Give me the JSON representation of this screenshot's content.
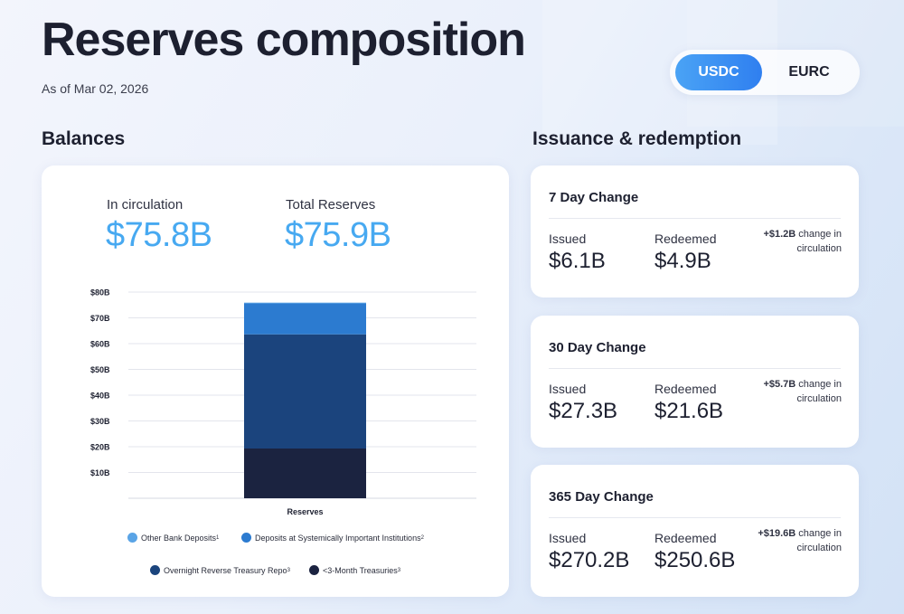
{
  "header": {
    "title": "Reserves composition",
    "as_of": "As of Mar 02, 2026"
  },
  "toggle": {
    "options": [
      "USDC",
      "EURC"
    ],
    "selected": "USDC",
    "active_color": "#3b8ef3"
  },
  "balances": {
    "section_title": "Balances",
    "in_circulation_label": "In circulation",
    "in_circulation_value": "$75.8B",
    "total_reserves_label": "Total Reserves",
    "total_reserves_value": "$75.9B",
    "value_color": "#47a9f1"
  },
  "chart_data": {
    "type": "bar",
    "stacked": true,
    "categories": [
      "Reserves"
    ],
    "xlabel": "Reserves",
    "ylabel": "",
    "ylim": [
      0,
      80
    ],
    "y_ticks": [
      10,
      20,
      30,
      40,
      50,
      60,
      70,
      80
    ],
    "y_tick_labels": [
      "$10B",
      "$20B",
      "$30B",
      "$40B",
      "$50B",
      "$60B",
      "$70B",
      "$80B"
    ],
    "grid": true,
    "series": [
      {
        "name": "<3-Month Treasuries",
        "sup": "3",
        "values": [
          19.3
        ],
        "color": "#1b2340"
      },
      {
        "name": "Overnight Reverse Treasury Repo",
        "sup": "3",
        "values": [
          44.3
        ],
        "color": "#1b447d"
      },
      {
        "name": "Deposits at Systemically Important Institutions",
        "sup": "2",
        "values": [
          12.0
        ],
        "color": "#2c7bd0"
      },
      {
        "name": "Other Bank Deposits",
        "sup": "1",
        "values": [
          0.3
        ],
        "color": "#5aa4e6"
      }
    ],
    "legend_order": [
      3,
      2,
      1,
      0
    ],
    "legend_placement": "bottom"
  },
  "issuance": {
    "section_title": "Issuance & redemption",
    "cards": [
      {
        "title": "7 Day Change",
        "issued_label": "Issued",
        "issued": "$6.1B",
        "redeemed_label": "Redeemed",
        "redeemed": "$4.9B",
        "change_bold": "+$1.2B",
        "change_text": " change in circulation"
      },
      {
        "title": "30 Day Change",
        "issued_label": "Issued",
        "issued": "$27.3B",
        "redeemed_label": "Redeemed",
        "redeemed": "$21.6B",
        "change_bold": "+$5.7B",
        "change_text": " change in circulation"
      },
      {
        "title": "365 Day Change",
        "issued_label": "Issued",
        "issued": "$270.2B",
        "redeemed_label": "Redeemed",
        "redeemed": "$250.6B",
        "change_bold": "+$19.6B",
        "change_text": " change in circulation"
      }
    ]
  }
}
